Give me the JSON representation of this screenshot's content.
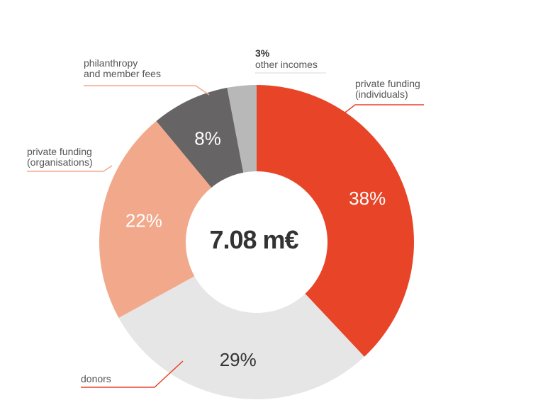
{
  "chart_data": {
    "type": "pie",
    "center_label": "7.08 m€",
    "slices": [
      {
        "label_lines": [
          "private funding",
          "(individuals)"
        ],
        "value": 38,
        "value_label": "38%",
        "color": "#e84428",
        "text_color": "#ffffff"
      },
      {
        "label_lines": [
          "donors"
        ],
        "value": 29,
        "value_label": "29%",
        "color": "#e6e6e6",
        "text_color": "#333333"
      },
      {
        "label_lines": [
          "private funding",
          "(organisations)"
        ],
        "value": 22,
        "value_label": "22%",
        "color": "#f2a98b",
        "text_color": "#ffffff"
      },
      {
        "label_lines": [
          "philanthropy",
          "and member fees"
        ],
        "value": 8,
        "value_label": "8%",
        "color": "#666465",
        "text_color": "#ffffff"
      },
      {
        "label_lines": [
          "other incomes"
        ],
        "value": 3,
        "value_label": "3%",
        "color": "#b8b8b8",
        "text_color": "#333333"
      }
    ]
  }
}
